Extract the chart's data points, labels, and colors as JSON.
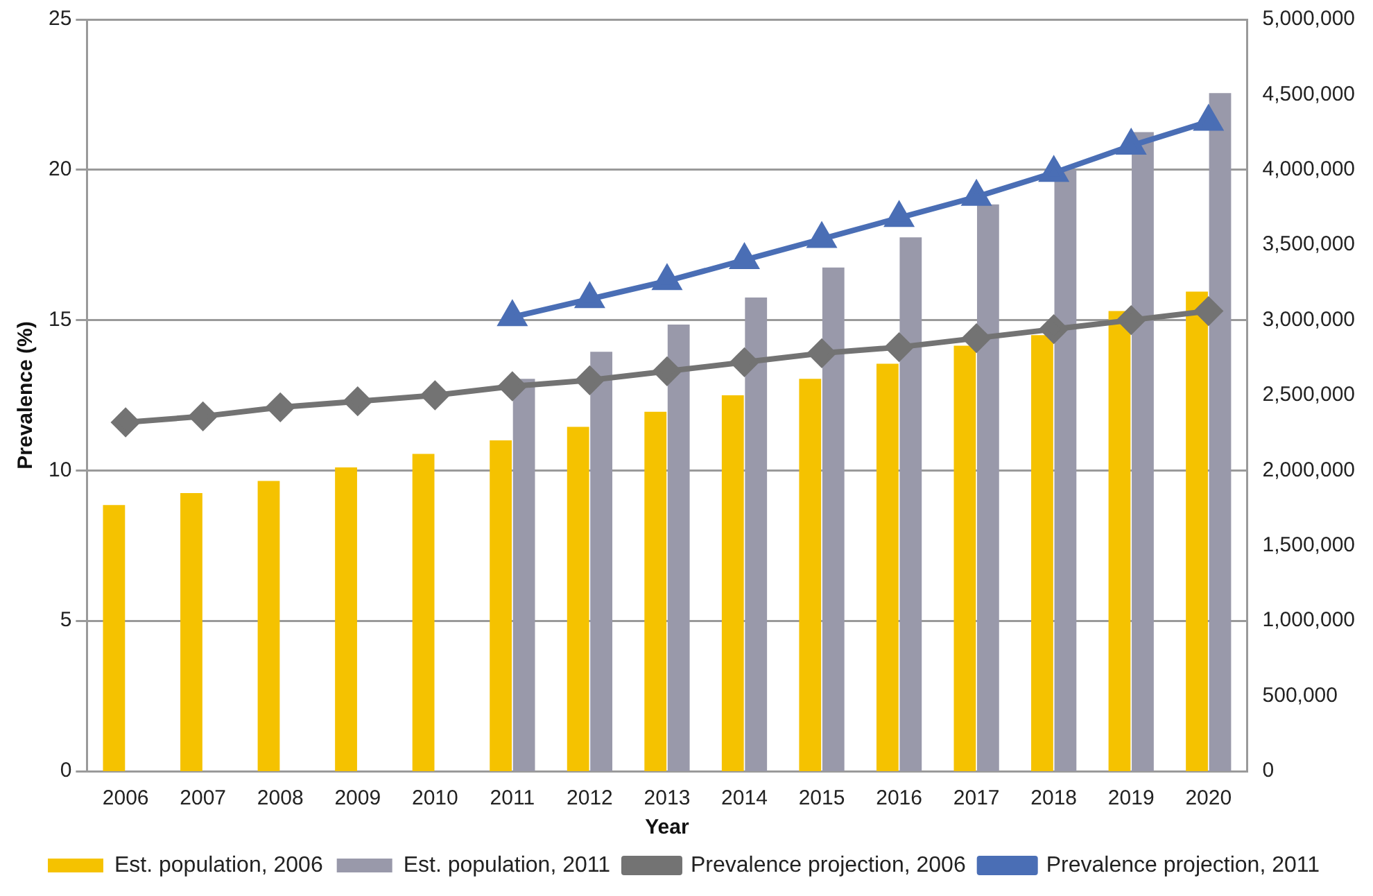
{
  "chart_data": {
    "type": "bar",
    "xlabel": "Year",
    "ylabel": "Prevalence (%)",
    "categories": [
      "2006",
      "2007",
      "2008",
      "2009",
      "2010",
      "2011",
      "2012",
      "2013",
      "2014",
      "2015",
      "2016",
      "2017",
      "2018",
      "2019",
      "2020"
    ],
    "series": [
      {
        "name": "Est. population, 2006",
        "color": "#f5c200",
        "axis": "y2",
        "values": [
          1770000,
          1850000,
          1930000,
          2020000,
          2110000,
          2200000,
          2290000,
          2390000,
          2500000,
          2610000,
          2710000,
          2830000,
          2900000,
          3060000,
          3190000
        ]
      },
      {
        "name": "Est. population, 2011",
        "color": "#9999aa",
        "axis": "y2",
        "values": [
          null,
          null,
          null,
          null,
          null,
          2610000,
          2790000,
          2970000,
          3150000,
          3350000,
          3550000,
          3770000,
          4000000,
          4250000,
          4510000
        ]
      },
      {
        "name": "Prevalence projection, 2006",
        "type": "line",
        "color": "#737373",
        "marker": "diamond",
        "values": [
          11.6,
          11.8,
          12.1,
          12.3,
          12.5,
          12.8,
          13.0,
          13.3,
          13.6,
          13.9,
          14.1,
          14.4,
          14.7,
          15.0,
          15.3
        ]
      },
      {
        "name": "Prevalence projection, 2011",
        "type": "line",
        "color": "#4a6eb5",
        "marker": "triangle",
        "values": [
          null,
          null,
          null,
          null,
          null,
          15.1,
          15.7,
          16.3,
          17.0,
          17.7,
          18.4,
          19.1,
          19.9,
          20.8,
          21.6
        ]
      }
    ],
    "ylim": [
      0,
      25
    ],
    "yticks": [
      0,
      5,
      10,
      15,
      20,
      25
    ],
    "y2lim": [
      0,
      5000000
    ],
    "y2ticks": [
      {
        "value": 0,
        "label": "0"
      },
      {
        "value": 500000,
        "label": "500,000"
      },
      {
        "value": 1000000,
        "label": "1,000,000"
      },
      {
        "value": 1500000,
        "label": "1,500,000"
      },
      {
        "value": 2000000,
        "label": "2,000,000"
      },
      {
        "value": 2500000,
        "label": "2,500,000"
      },
      {
        "value": 3000000,
        "label": "3,000,000"
      },
      {
        "value": 3500000,
        "label": "3,500,000"
      },
      {
        "value": 4000000,
        "label": "4,000,000"
      },
      {
        "value": 4500000,
        "label": "4,500,000"
      },
      {
        "value": 5000000,
        "label": "5,000,000"
      }
    ],
    "grid": "y",
    "legend": "bottom"
  }
}
